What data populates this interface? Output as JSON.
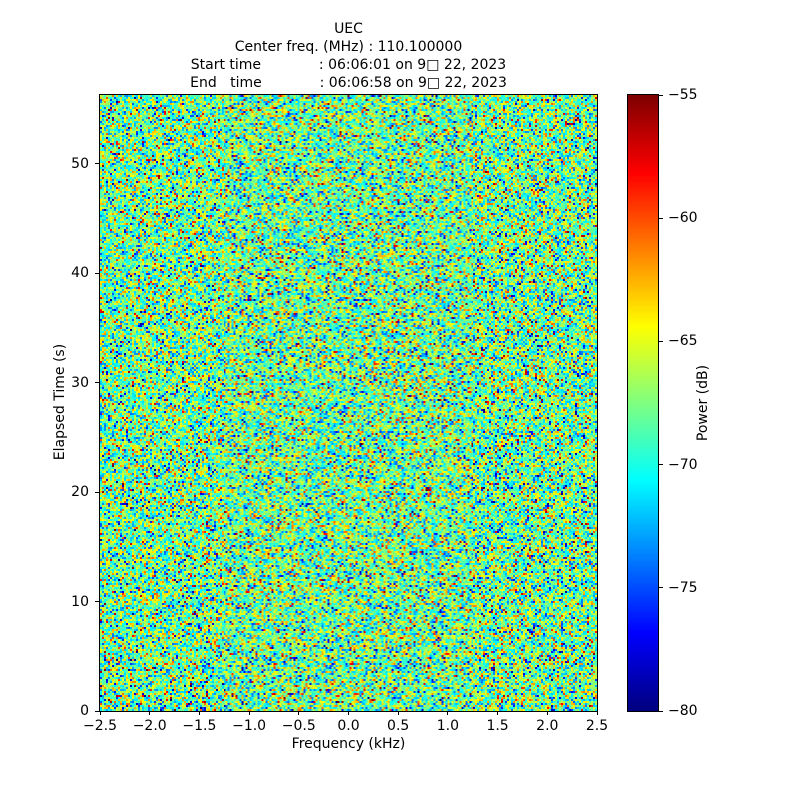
{
  "header": {
    "title": "UEC",
    "center_freq_line": "Center freq. (MHz) : 110.100000",
    "start_time_line": "Start time             : 06:06:01 on 9□ 22, 2023",
    "end_time_line": "End   time             : 06:06:58 on 9□ 22, 2023"
  },
  "chart_data": {
    "type": "heatmap",
    "title": "UEC",
    "subtitle_lines": [
      "Center freq. (MHz) : 110.100000",
      "Start time             : 06:06:01 on 9□ 22, 2023",
      "End   time             : 06:06:58 on 9□ 22, 2023"
    ],
    "center_freq_mhz": 110.1,
    "start_time": "06:06:01",
    "end_time": "06:06:58",
    "date_label": "9□ 22, 2023",
    "xlabel": "Frequency (kHz)",
    "ylabel": "Elapsed Time (s)",
    "colorbar_label": "Power (dB)",
    "colormap": "jet",
    "xlim": [
      -2.5,
      2.5
    ],
    "ylim": [
      0,
      56.3
    ],
    "clim": [
      -80,
      -55
    ],
    "x_ticks": [
      -2.5,
      -2.0,
      -1.5,
      -1.0,
      -0.5,
      0.0,
      0.5,
      1.0,
      1.5,
      2.0,
      2.5
    ],
    "x_tick_labels": [
      "−2.5",
      "−2.0",
      "−1.5",
      "−1.0",
      "−0.5",
      "0.0",
      "0.5",
      "1.0",
      "1.5",
      "2.0",
      "2.5"
    ],
    "y_ticks": [
      0,
      10,
      20,
      30,
      40,
      50
    ],
    "y_tick_labels": [
      "0",
      "10",
      "20",
      "30",
      "40",
      "50"
    ],
    "cb_ticks": [
      -55,
      -60,
      -65,
      -70,
      -75,
      -80
    ],
    "cb_tick_labels": [
      "−55",
      "−60",
      "−65",
      "−70",
      "−75",
      "−80"
    ],
    "grid": false,
    "legend": "none (colorbar on right)",
    "description": "Spectrogram of broadband random noise over 0–56 s and ±2.5 kHz; power values are unstructured noise mostly between −75 dB and −62 dB (green/cyan/yellow) with sparse extremes near −80 dB (navy) and −55 dB (dark red). No coherent signal features.",
    "noise": {
      "cols": 249,
      "rows": 308,
      "seed": 123456,
      "t_mean": 0.48,
      "t_sigma": 0.14,
      "outlier_fraction": 0.1
    }
  },
  "colors": {
    "background": "#ffffff",
    "text": "#000000",
    "spine": "#000000",
    "cmap_low": "#000080",
    "cmap_high": "#800000"
  }
}
